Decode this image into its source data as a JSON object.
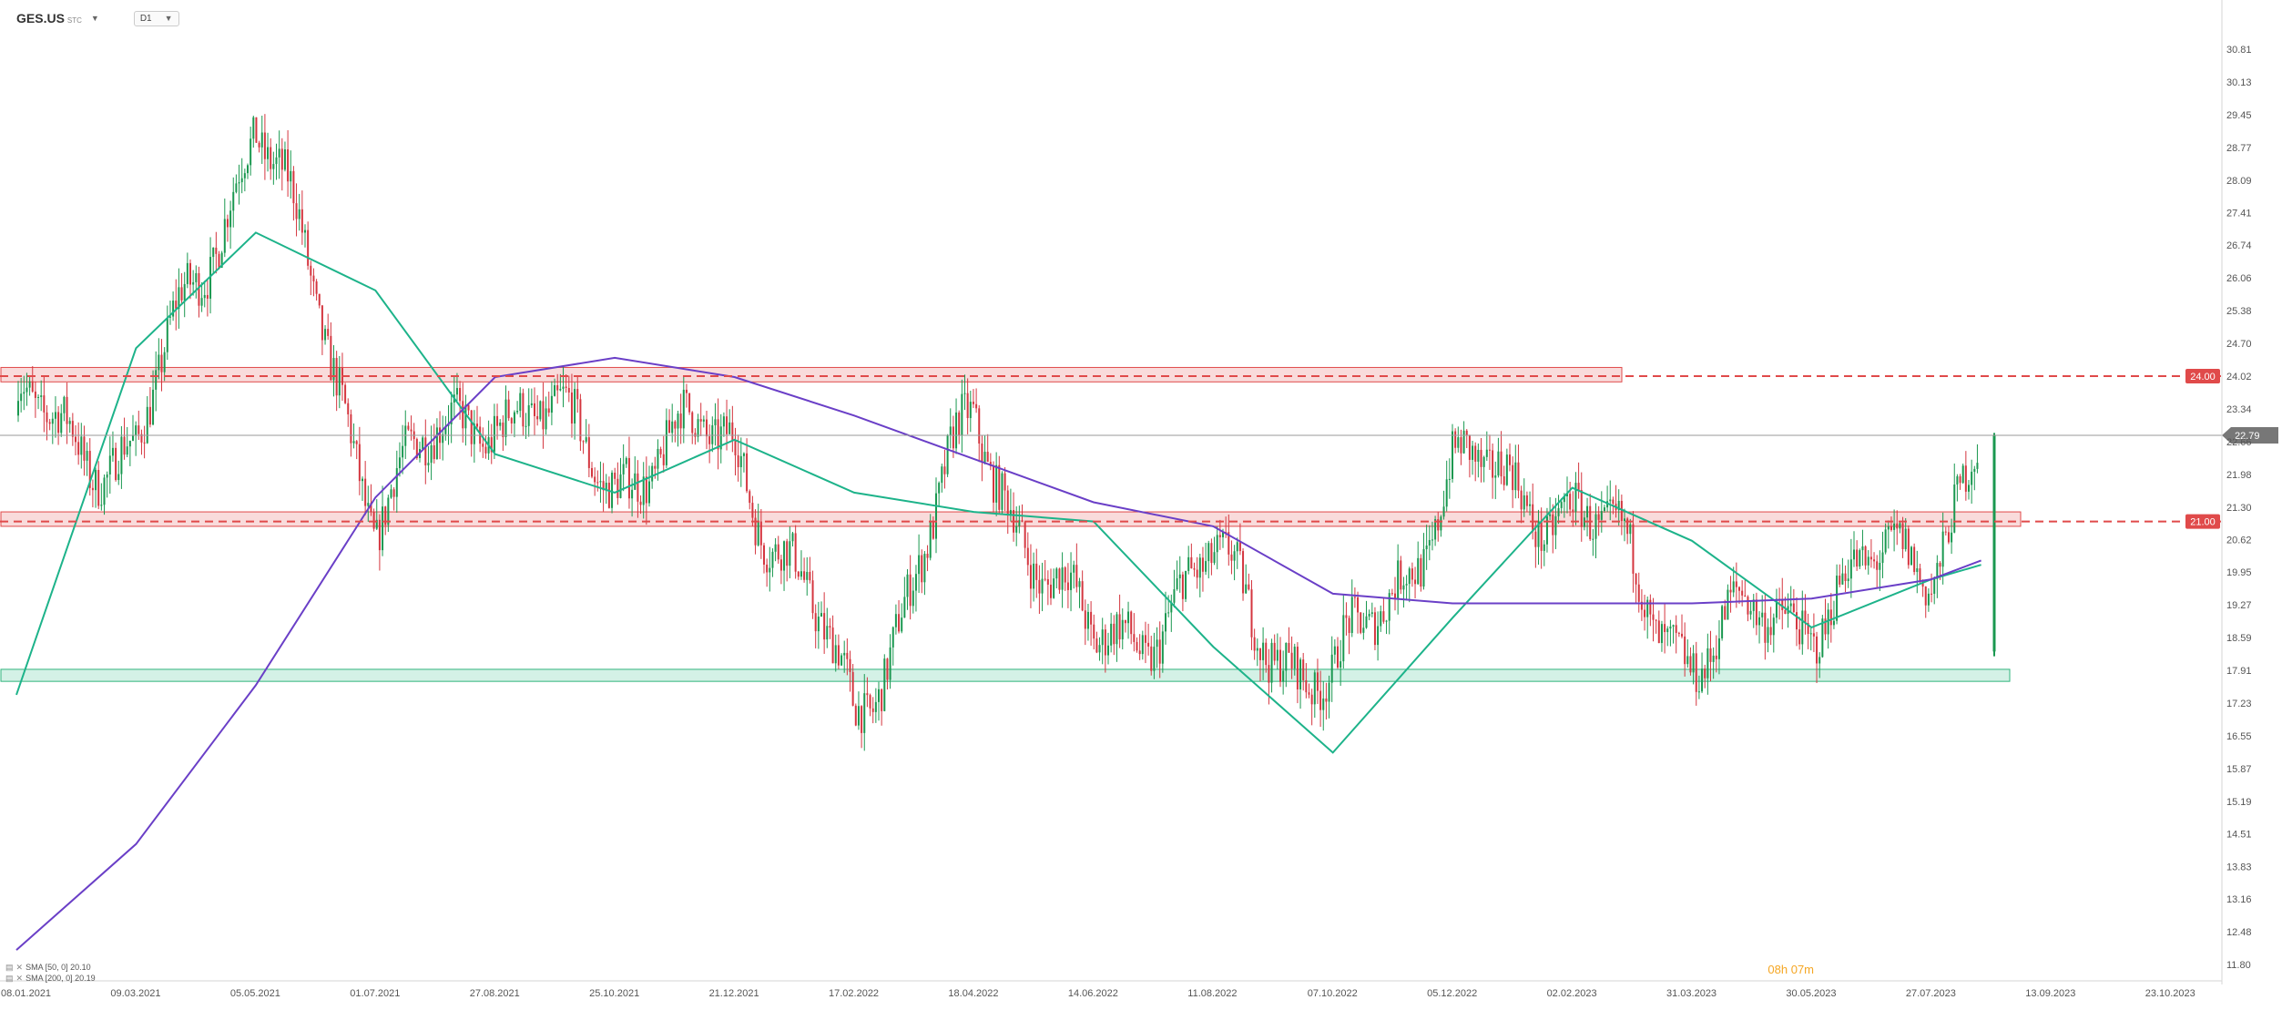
{
  "header": {
    "ticker": "GES.US",
    "ticker_sub": "STC",
    "timeframe": "D1"
  },
  "legend": [
    {
      "label": "SMA [50, 0] 20.10",
      "color": "#1db38a"
    },
    {
      "label": "SMA [200, 0] 20.19",
      "color": "#6a3fc7"
    }
  ],
  "timer": "08h 07m",
  "colors": {
    "up": "#1a9850",
    "down": "#d4363f",
    "sma50": "#1db38a",
    "sma200": "#6a3fc7",
    "resistance": "#e04a4a",
    "support": "#3cc08b"
  },
  "chart_data": {
    "type": "candlestick",
    "x_ticks": [
      "08.01.2021",
      "09.03.2021",
      "05.05.2021",
      "01.07.2021",
      "27.08.2021",
      "25.10.2021",
      "21.12.2021",
      "17.02.2022",
      "18.04.2022",
      "14.06.2022",
      "11.08.2022",
      "07.10.2022",
      "05.12.2022",
      "02.02.2023",
      "31.03.2023",
      "30.05.2023",
      "27.07.2023",
      "13.09.2023",
      "23.10.2023"
    ],
    "y_ticks": [
      30.81,
      30.13,
      29.45,
      28.77,
      28.09,
      27.41,
      26.74,
      26.06,
      25.38,
      24.7,
      24.02,
      23.34,
      22.66,
      21.98,
      21.3,
      20.62,
      19.95,
      19.27,
      18.59,
      17.91,
      17.23,
      16.55,
      15.87,
      15.19,
      14.51,
      13.83,
      13.16,
      12.48,
      11.8
    ],
    "ylim": [
      11.8,
      31.3
    ],
    "close_points": [
      {
        "x": "08.01.2021",
        "y": 23.2
      },
      {
        "x": "09.03.2021",
        "y": 22.4
      },
      {
        "x": "05.05.2021",
        "y": 29.5
      },
      {
        "x": "01.07.2021",
        "y": 21.4
      },
      {
        "x": "27.08.2021",
        "y": 23.6
      },
      {
        "x": "25.10.2021",
        "y": 22.1
      },
      {
        "x": "21.12.2021",
        "y": 22.8
      },
      {
        "x": "17.02.2022",
        "y": 16.9
      },
      {
        "x": "18.04.2022",
        "y": 23.0
      },
      {
        "x": "14.06.2022",
        "y": 18.2
      },
      {
        "x": "11.08.2022",
        "y": 20.0
      },
      {
        "x": "07.10.2022",
        "y": 17.4
      },
      {
        "x": "05.12.2022",
        "y": 22.0
      },
      {
        "x": "02.02.2023",
        "y": 21.4
      },
      {
        "x": "31.03.2023",
        "y": 18.3
      },
      {
        "x": "30.05.2023",
        "y": 19.3
      },
      {
        "x": "27.07.2023",
        "y": 20.4
      },
      {
        "x": "16.08.2023",
        "y": 22.79
      }
    ],
    "levels": [
      {
        "value": 24.02,
        "label": "24.00",
        "kind": "resistance"
      },
      {
        "value": 21.0,
        "label": "21.00",
        "kind": "resistance"
      }
    ],
    "zones": [
      {
        "low": 23.9,
        "high": 24.2,
        "kind": "resistance"
      },
      {
        "low": 20.9,
        "high": 21.2,
        "kind": "resistance"
      },
      {
        "low": 17.68,
        "high": 17.93,
        "kind": "support"
      }
    ],
    "last_price": 22.79,
    "series": [
      {
        "name": "SMA [50, 0]",
        "last": 20.1
      },
      {
        "name": "SMA [200, 0]",
        "last": 20.19
      }
    ]
  }
}
